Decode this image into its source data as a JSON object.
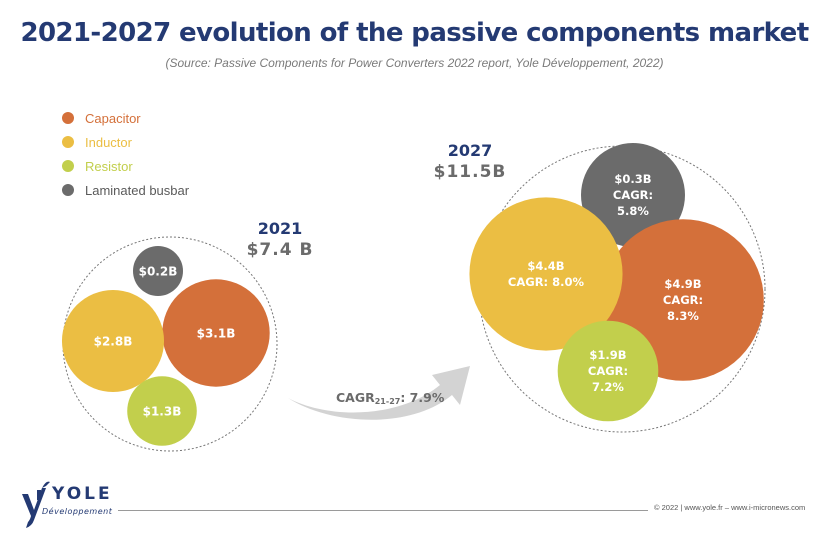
{
  "header": {
    "title": "2021-2027 evolution of the passive components market",
    "subtitle": "(Source: Passive Components for Power Converters 2022 report, Yole Développement, 2022)"
  },
  "legend": [
    {
      "label": "Capacitor",
      "color": "#d4703a"
    },
    {
      "label": "Inductor",
      "color": "#ebbe43"
    },
    {
      "label": "Resistor",
      "color": "#c2cf4c"
    },
    {
      "label": "Laminated busbar",
      "color": "#6b6b6b"
    }
  ],
  "chart_data": {
    "type": "bubble",
    "title": "2021-2027 evolution of the passive components market",
    "unit": "USD billions",
    "categories": [
      "Capacitor",
      "Inductor",
      "Resistor",
      "Laminated busbar"
    ],
    "groups": [
      {
        "year": "2021",
        "total_label": "$7.4 B",
        "total": 7.4,
        "items": [
          {
            "category": "Capacitor",
            "value": 3.1,
            "label": "$3.1B"
          },
          {
            "category": "Inductor",
            "value": 2.8,
            "label": "$2.8B"
          },
          {
            "category": "Resistor",
            "value": 1.3,
            "label": "$1.3B"
          },
          {
            "category": "Laminated busbar",
            "value": 0.2,
            "label": "$0.2B"
          }
        ]
      },
      {
        "year": "2027",
        "total_label": "$11.5B",
        "total": 11.5,
        "items": [
          {
            "category": "Capacitor",
            "value": 4.9,
            "label": "$4.9B",
            "cagr_label": "CAGR:",
            "cagr": "8.3%"
          },
          {
            "category": "Inductor",
            "value": 4.4,
            "label": "$4.4B",
            "cagr_label": "CAGR: 8.0%",
            "cagr": "8.0%"
          },
          {
            "category": "Resistor",
            "value": 1.9,
            "label": "$1.9B",
            "cagr_label": "CAGR:",
            "cagr": "7.2%"
          },
          {
            "category": "Laminated busbar",
            "value": 0.3,
            "label": "$0.3B",
            "cagr_label": "CAGR:",
            "cagr": "5.8%"
          }
        ]
      }
    ],
    "overall_cagr": {
      "prefix": "CAGR",
      "subscript": "21-27",
      "value": ": 7.9%"
    }
  },
  "footer": {
    "logo_word": "YOLE",
    "logo_sub": "Développement",
    "copyright": "© 2022 | www.yole.fr – www.i-micronews.com"
  }
}
